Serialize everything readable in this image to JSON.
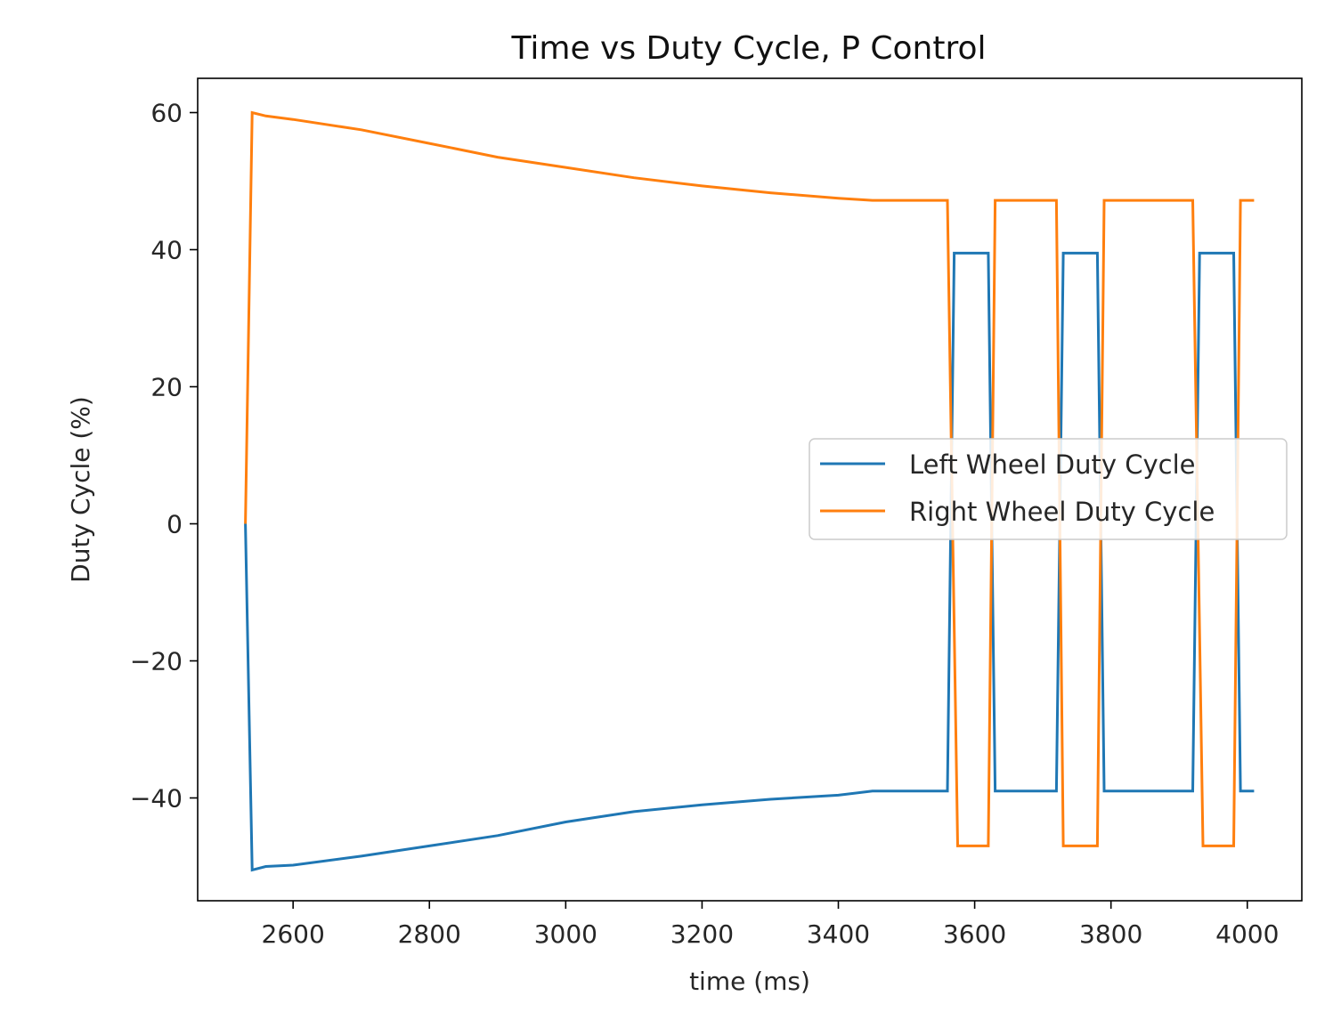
{
  "chart_data": {
    "type": "line",
    "title": "Time vs Duty Cycle, P Control",
    "xlabel": "time (ms)",
    "ylabel": "Duty Cycle (%)",
    "xlim": [
      2460,
      4080
    ],
    "ylim": [
      -55,
      65
    ],
    "xticks": [
      2600,
      2800,
      3000,
      3200,
      3400,
      3600,
      3800,
      4000
    ],
    "xtick_labels": [
      "2600",
      "2800",
      "3000",
      "3200",
      "3400",
      "3600",
      "3800",
      "4000"
    ],
    "yticks": [
      60,
      40,
      20,
      0,
      -20,
      -40
    ],
    "ytick_labels": [
      "60",
      "40",
      "20",
      "0",
      "−20",
      "−40"
    ],
    "grid": false,
    "legend_position": "center-right",
    "series": [
      {
        "name": "Left Wheel Duty Cycle",
        "color": "#1f77b4",
        "x": [
          2530,
          2540,
          2560,
          2600,
          2700,
          2800,
          2900,
          3000,
          3100,
          3200,
          3300,
          3400,
          3450,
          3560,
          3570,
          3580,
          3620,
          3630,
          3720,
          3730,
          3740,
          3780,
          3790,
          3920,
          3930,
          3940,
          3980,
          3990,
          4010
        ],
        "y": [
          0,
          -50.5,
          -50,
          -49.8,
          -48.5,
          -47,
          -45.5,
          -43.5,
          -42,
          -41,
          -40.2,
          -39.6,
          -39,
          -39,
          39.5,
          39.5,
          39.5,
          -39,
          -39,
          39.5,
          39.5,
          39.5,
          -39,
          -39,
          39.5,
          39.5,
          39.5,
          -39,
          -39
        ]
      },
      {
        "name": "Right Wheel Duty Cycle",
        "color": "#ff7f0e",
        "x": [
          2530,
          2540,
          2560,
          2600,
          2700,
          2800,
          2900,
          3000,
          3100,
          3200,
          3300,
          3400,
          3450,
          3560,
          3575,
          3580,
          3620,
          3630,
          3720,
          3730,
          3740,
          3780,
          3790,
          3920,
          3935,
          3940,
          3980,
          3990,
          4010
        ],
        "y": [
          0,
          60,
          59.5,
          59,
          57.5,
          55.5,
          53.5,
          52,
          50.5,
          49.3,
          48.3,
          47.5,
          47.2,
          47.2,
          -47,
          -47,
          -47,
          47.2,
          47.2,
          -47,
          -47,
          -47,
          47.2,
          47.2,
          -47,
          -47,
          -47,
          47.2,
          47.2
        ]
      }
    ]
  }
}
